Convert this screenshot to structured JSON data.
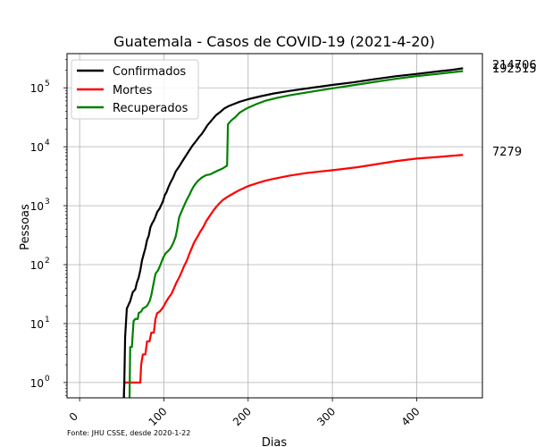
{
  "chart_data": {
    "type": "line",
    "title": "Guatemala - Casos de COVID-19 (2021-4-20)",
    "xlabel": "Dias",
    "ylabel": "Pessoas",
    "source": "Fonte: JHU CSSE, desde 2020-1-22",
    "xlim": [
      -15,
      478
    ],
    "ylim": [
      0.55,
      380000
    ],
    "yscale": "log",
    "grid": true,
    "legend_position": "top-left",
    "x_ticks": [
      0,
      100,
      200,
      300,
      400
    ],
    "x_tick_labels": [
      "0",
      "100",
      "200",
      "300",
      "400"
    ],
    "y_ticks": [
      1,
      10,
      100,
      1000,
      10000,
      100000
    ],
    "y_tick_labels": [
      {
        "base": "10",
        "exp": "0"
      },
      {
        "base": "10",
        "exp": "1"
      },
      {
        "base": "10",
        "exp": "2"
      },
      {
        "base": "10",
        "exp": "3"
      },
      {
        "base": "10",
        "exp": "4"
      },
      {
        "base": "10",
        "exp": "5"
      }
    ],
    "series": [
      {
        "name": "Confirmados",
        "color": "#000000",
        "end_label": "214706",
        "points": [
          [
            52,
            0.3
          ],
          [
            53,
            1
          ],
          [
            54,
            6
          ],
          [
            56,
            18
          ],
          [
            60,
            24
          ],
          [
            63,
            34
          ],
          [
            66,
            38
          ],
          [
            68,
            50
          ],
          [
            70,
            60
          ],
          [
            72,
            80
          ],
          [
            74,
            118
          ],
          [
            76,
            150
          ],
          [
            78,
            190
          ],
          [
            80,
            260
          ],
          [
            82,
            310
          ],
          [
            84,
            430
          ],
          [
            86,
            500
          ],
          [
            88,
            560
          ],
          [
            90,
            650
          ],
          [
            92,
            780
          ],
          [
            95,
            900
          ],
          [
            97,
            1040
          ],
          [
            99,
            1200
          ],
          [
            101,
            1500
          ],
          [
            103,
            1680
          ],
          [
            105,
            2000
          ],
          [
            108,
            2500
          ],
          [
            111,
            3000
          ],
          [
            114,
            3800
          ],
          [
            118,
            4600
          ],
          [
            122,
            5700
          ],
          [
            126,
            7000
          ],
          [
            130,
            8600
          ],
          [
            134,
            10500
          ],
          [
            138,
            12400
          ],
          [
            142,
            14800
          ],
          [
            145,
            16500
          ],
          [
            148,
            19200
          ],
          [
            152,
            23500
          ],
          [
            157,
            28500
          ],
          [
            162,
            34500
          ],
          [
            167,
            39000
          ],
          [
            172,
            45000
          ],
          [
            177,
            49000
          ],
          [
            183,
            53000
          ],
          [
            190,
            58000
          ],
          [
            200,
            64000
          ],
          [
            215,
            72000
          ],
          [
            230,
            80000
          ],
          [
            250,
            89000
          ],
          [
            275,
            100000
          ],
          [
            300,
            112000
          ],
          [
            325,
            124000
          ],
          [
            350,
            140000
          ],
          [
            375,
            157000
          ],
          [
            400,
            172000
          ],
          [
            425,
            190000
          ],
          [
            440,
            200000
          ],
          [
            455,
            214706
          ]
        ]
      },
      {
        "name": "Mortes",
        "color": "#ff0000",
        "end_label": "7279",
        "points": [
          [
            52,
            0.3
          ],
          [
            53,
            1
          ],
          [
            58,
            1
          ],
          [
            63,
            1
          ],
          [
            72,
            1
          ],
          [
            73,
            2
          ],
          [
            75,
            3
          ],
          [
            78,
            3
          ],
          [
            80,
            5
          ],
          [
            83,
            5
          ],
          [
            85,
            7
          ],
          [
            88,
            7
          ],
          [
            90,
            12
          ],
          [
            92,
            15
          ],
          [
            95,
            16
          ],
          [
            98,
            18
          ],
          [
            100,
            20
          ],
          [
            103,
            24
          ],
          [
            106,
            28
          ],
          [
            109,
            32
          ],
          [
            112,
            40
          ],
          [
            115,
            50
          ],
          [
            118,
            60
          ],
          [
            121,
            75
          ],
          [
            124,
            95
          ],
          [
            127,
            115
          ],
          [
            130,
            150
          ],
          [
            133,
            190
          ],
          [
            136,
            240
          ],
          [
            140,
            300
          ],
          [
            143,
            360
          ],
          [
            147,
            440
          ],
          [
            150,
            540
          ],
          [
            154,
            660
          ],
          [
            158,
            800
          ],
          [
            162,
            950
          ],
          [
            166,
            1100
          ],
          [
            170,
            1250
          ],
          [
            175,
            1400
          ],
          [
            182,
            1600
          ],
          [
            190,
            1850
          ],
          [
            200,
            2150
          ],
          [
            210,
            2400
          ],
          [
            220,
            2650
          ],
          [
            230,
            2850
          ],
          [
            250,
            3250
          ],
          [
            270,
            3600
          ],
          [
            300,
            4000
          ],
          [
            330,
            4500
          ],
          [
            350,
            5000
          ],
          [
            375,
            5700
          ],
          [
            400,
            6300
          ],
          [
            425,
            6700
          ],
          [
            455,
            7279
          ]
        ]
      },
      {
        "name": "Recuperados",
        "color": "#008000",
        "end_label": "192515",
        "points": [
          [
            59,
            0.3
          ],
          [
            60,
            4
          ],
          [
            62,
            4
          ],
          [
            64,
            11
          ],
          [
            66,
            12
          ],
          [
            69,
            12
          ],
          [
            70,
            15
          ],
          [
            73,
            16
          ],
          [
            75,
            18
          ],
          [
            78,
            19
          ],
          [
            80,
            20
          ],
          [
            83,
            24
          ],
          [
            85,
            30
          ],
          [
            88,
            50
          ],
          [
            90,
            70
          ],
          [
            93,
            80
          ],
          [
            96,
            100
          ],
          [
            99,
            130
          ],
          [
            102,
            155
          ],
          [
            105,
            170
          ],
          [
            108,
            190
          ],
          [
            111,
            230
          ],
          [
            114,
            300
          ],
          [
            116,
            420
          ],
          [
            118,
            630
          ],
          [
            121,
            800
          ],
          [
            124,
            1000
          ],
          [
            127,
            1250
          ],
          [
            130,
            1500
          ],
          [
            133,
            1850
          ],
          [
            136,
            2200
          ],
          [
            140,
            2600
          ],
          [
            145,
            3000
          ],
          [
            150,
            3300
          ],
          [
            155,
            3400
          ],
          [
            160,
            3700
          ],
          [
            165,
            4000
          ],
          [
            170,
            4300
          ],
          [
            175,
            4800
          ],
          [
            176,
            24000
          ],
          [
            180,
            28000
          ],
          [
            185,
            32000
          ],
          [
            190,
            38000
          ],
          [
            195,
            42000
          ],
          [
            200,
            46000
          ],
          [
            210,
            53000
          ],
          [
            220,
            60000
          ],
          [
            235,
            68000
          ],
          [
            250,
            75000
          ],
          [
            275,
            86000
          ],
          [
            300,
            98000
          ],
          [
            325,
            111000
          ],
          [
            350,
            126000
          ],
          [
            375,
            142000
          ],
          [
            400,
            158000
          ],
          [
            425,
            172000
          ],
          [
            455,
            192515
          ]
        ]
      }
    ]
  }
}
